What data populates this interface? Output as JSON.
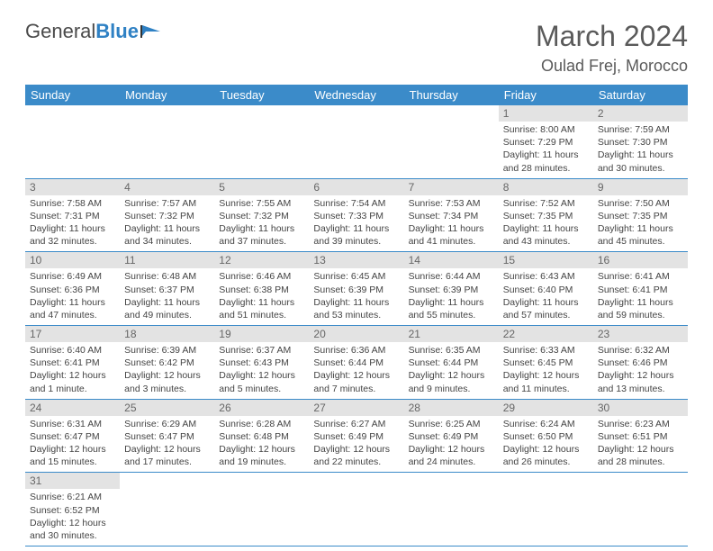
{
  "brand": {
    "part1": "General",
    "part2": "Blue"
  },
  "title": "March 2024",
  "location": "Oulad Frej, Morocco",
  "colors": {
    "header_bg": "#3b8bc9",
    "header_text": "#ffffff",
    "daynum_bg": "#e3e3e3",
    "border": "#3b8bc9",
    "text": "#444444"
  },
  "weekdays": [
    "Sunday",
    "Monday",
    "Tuesday",
    "Wednesday",
    "Thursday",
    "Friday",
    "Saturday"
  ],
  "grid": [
    [
      {
        "n": "",
        "empty": true
      },
      {
        "n": "",
        "empty": true
      },
      {
        "n": "",
        "empty": true
      },
      {
        "n": "",
        "empty": true
      },
      {
        "n": "",
        "empty": true
      },
      {
        "n": "1",
        "sr": "Sunrise: 8:00 AM",
        "ss": "Sunset: 7:29 PM",
        "dl": "Daylight: 11 hours and 28 minutes."
      },
      {
        "n": "2",
        "sr": "Sunrise: 7:59 AM",
        "ss": "Sunset: 7:30 PM",
        "dl": "Daylight: 11 hours and 30 minutes."
      }
    ],
    [
      {
        "n": "3",
        "sr": "Sunrise: 7:58 AM",
        "ss": "Sunset: 7:31 PM",
        "dl": "Daylight: 11 hours and 32 minutes."
      },
      {
        "n": "4",
        "sr": "Sunrise: 7:57 AM",
        "ss": "Sunset: 7:32 PM",
        "dl": "Daylight: 11 hours and 34 minutes."
      },
      {
        "n": "5",
        "sr": "Sunrise: 7:55 AM",
        "ss": "Sunset: 7:32 PM",
        "dl": "Daylight: 11 hours and 37 minutes."
      },
      {
        "n": "6",
        "sr": "Sunrise: 7:54 AM",
        "ss": "Sunset: 7:33 PM",
        "dl": "Daylight: 11 hours and 39 minutes."
      },
      {
        "n": "7",
        "sr": "Sunrise: 7:53 AM",
        "ss": "Sunset: 7:34 PM",
        "dl": "Daylight: 11 hours and 41 minutes."
      },
      {
        "n": "8",
        "sr": "Sunrise: 7:52 AM",
        "ss": "Sunset: 7:35 PM",
        "dl": "Daylight: 11 hours and 43 minutes."
      },
      {
        "n": "9",
        "sr": "Sunrise: 7:50 AM",
        "ss": "Sunset: 7:35 PM",
        "dl": "Daylight: 11 hours and 45 minutes."
      }
    ],
    [
      {
        "n": "10",
        "sr": "Sunrise: 6:49 AM",
        "ss": "Sunset: 6:36 PM",
        "dl": "Daylight: 11 hours and 47 minutes."
      },
      {
        "n": "11",
        "sr": "Sunrise: 6:48 AM",
        "ss": "Sunset: 6:37 PM",
        "dl": "Daylight: 11 hours and 49 minutes."
      },
      {
        "n": "12",
        "sr": "Sunrise: 6:46 AM",
        "ss": "Sunset: 6:38 PM",
        "dl": "Daylight: 11 hours and 51 minutes."
      },
      {
        "n": "13",
        "sr": "Sunrise: 6:45 AM",
        "ss": "Sunset: 6:39 PM",
        "dl": "Daylight: 11 hours and 53 minutes."
      },
      {
        "n": "14",
        "sr": "Sunrise: 6:44 AM",
        "ss": "Sunset: 6:39 PM",
        "dl": "Daylight: 11 hours and 55 minutes."
      },
      {
        "n": "15",
        "sr": "Sunrise: 6:43 AM",
        "ss": "Sunset: 6:40 PM",
        "dl": "Daylight: 11 hours and 57 minutes."
      },
      {
        "n": "16",
        "sr": "Sunrise: 6:41 AM",
        "ss": "Sunset: 6:41 PM",
        "dl": "Daylight: 11 hours and 59 minutes."
      }
    ],
    [
      {
        "n": "17",
        "sr": "Sunrise: 6:40 AM",
        "ss": "Sunset: 6:41 PM",
        "dl": "Daylight: 12 hours and 1 minute."
      },
      {
        "n": "18",
        "sr": "Sunrise: 6:39 AM",
        "ss": "Sunset: 6:42 PM",
        "dl": "Daylight: 12 hours and 3 minutes."
      },
      {
        "n": "19",
        "sr": "Sunrise: 6:37 AM",
        "ss": "Sunset: 6:43 PM",
        "dl": "Daylight: 12 hours and 5 minutes."
      },
      {
        "n": "20",
        "sr": "Sunrise: 6:36 AM",
        "ss": "Sunset: 6:44 PM",
        "dl": "Daylight: 12 hours and 7 minutes."
      },
      {
        "n": "21",
        "sr": "Sunrise: 6:35 AM",
        "ss": "Sunset: 6:44 PM",
        "dl": "Daylight: 12 hours and 9 minutes."
      },
      {
        "n": "22",
        "sr": "Sunrise: 6:33 AM",
        "ss": "Sunset: 6:45 PM",
        "dl": "Daylight: 12 hours and 11 minutes."
      },
      {
        "n": "23",
        "sr": "Sunrise: 6:32 AM",
        "ss": "Sunset: 6:46 PM",
        "dl": "Daylight: 12 hours and 13 minutes."
      }
    ],
    [
      {
        "n": "24",
        "sr": "Sunrise: 6:31 AM",
        "ss": "Sunset: 6:47 PM",
        "dl": "Daylight: 12 hours and 15 minutes."
      },
      {
        "n": "25",
        "sr": "Sunrise: 6:29 AM",
        "ss": "Sunset: 6:47 PM",
        "dl": "Daylight: 12 hours and 17 minutes."
      },
      {
        "n": "26",
        "sr": "Sunrise: 6:28 AM",
        "ss": "Sunset: 6:48 PM",
        "dl": "Daylight: 12 hours and 19 minutes."
      },
      {
        "n": "27",
        "sr": "Sunrise: 6:27 AM",
        "ss": "Sunset: 6:49 PM",
        "dl": "Daylight: 12 hours and 22 minutes."
      },
      {
        "n": "28",
        "sr": "Sunrise: 6:25 AM",
        "ss": "Sunset: 6:49 PM",
        "dl": "Daylight: 12 hours and 24 minutes."
      },
      {
        "n": "29",
        "sr": "Sunrise: 6:24 AM",
        "ss": "Sunset: 6:50 PM",
        "dl": "Daylight: 12 hours and 26 minutes."
      },
      {
        "n": "30",
        "sr": "Sunrise: 6:23 AM",
        "ss": "Sunset: 6:51 PM",
        "dl": "Daylight: 12 hours and 28 minutes."
      }
    ],
    [
      {
        "n": "31",
        "sr": "Sunrise: 6:21 AM",
        "ss": "Sunset: 6:52 PM",
        "dl": "Daylight: 12 hours and 30 minutes."
      },
      {
        "n": "",
        "empty": true
      },
      {
        "n": "",
        "empty": true
      },
      {
        "n": "",
        "empty": true
      },
      {
        "n": "",
        "empty": true
      },
      {
        "n": "",
        "empty": true
      },
      {
        "n": "",
        "empty": true
      }
    ]
  ]
}
